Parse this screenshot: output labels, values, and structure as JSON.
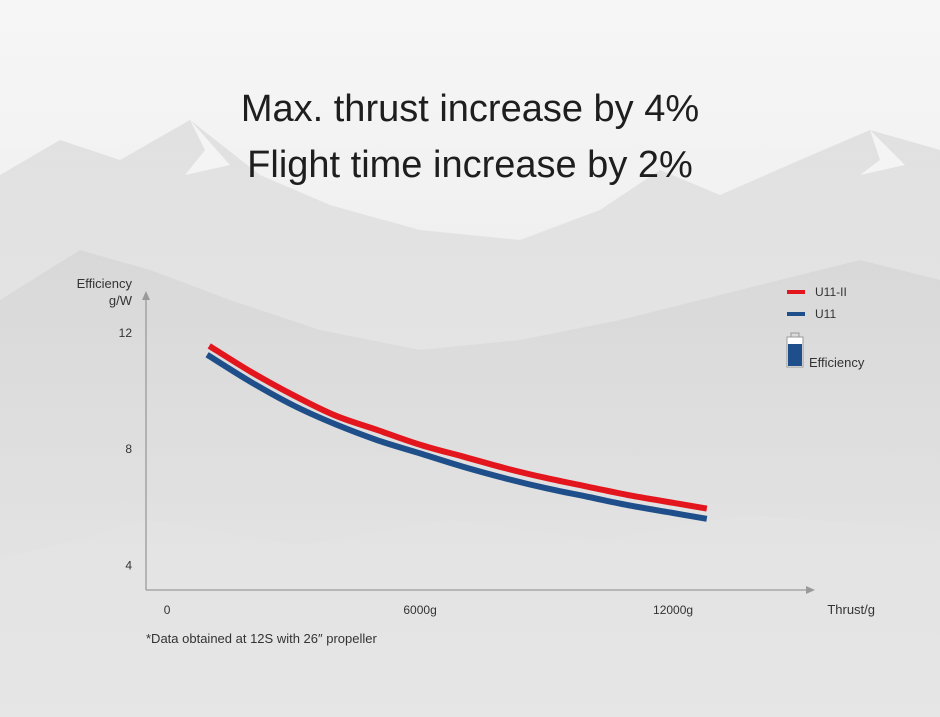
{
  "headline": {
    "line1": "Max. thrust increase by 4%",
    "line2": "Flight time increase by 2%"
  },
  "footnote": "*Data obtained at 12S with 26″ propeller",
  "chart_data": {
    "type": "line",
    "title": "",
    "ylabel_line1": "Efficiency",
    "ylabel_line2": "g/W",
    "xlabel": "Thrust/g",
    "yticks": [
      {
        "value": 4,
        "label": "4"
      },
      {
        "value": 8,
        "label": "8"
      },
      {
        "value": 12,
        "label": "12"
      }
    ],
    "xticks": [
      {
        "value": 0,
        "label": "0"
      },
      {
        "value": 6000,
        "label": "6000g"
      },
      {
        "value": 12000,
        "label": "12000g"
      }
    ],
    "xlim": [
      -500,
      15200
    ],
    "ylim": [
      3.15,
      13.2
    ],
    "legend_placement": "top-right",
    "legend_extra_label": "Efficiency",
    "legend_extra_icon": "battery-icon",
    "grid": false,
    "series": [
      {
        "name": "U11-II",
        "color": "#e3161d",
        "points": [
          [
            1000,
            11.55
          ],
          [
            2000,
            10.65
          ],
          [
            3000,
            9.85
          ],
          [
            4000,
            9.15
          ],
          [
            5000,
            8.65
          ],
          [
            6000,
            8.15
          ],
          [
            7000,
            7.75
          ],
          [
            8000,
            7.35
          ],
          [
            9000,
            7.0
          ],
          [
            10000,
            6.7
          ],
          [
            11000,
            6.4
          ],
          [
            12000,
            6.15
          ],
          [
            12800,
            5.95
          ]
        ]
      },
      {
        "name": "U11",
        "color": "#1f4f8a",
        "points": [
          [
            950,
            11.25
          ],
          [
            2000,
            10.3
          ],
          [
            3000,
            9.5
          ],
          [
            4000,
            8.85
          ],
          [
            5000,
            8.3
          ],
          [
            6000,
            7.85
          ],
          [
            7000,
            7.4
          ],
          [
            8000,
            7.0
          ],
          [
            9000,
            6.65
          ],
          [
            10000,
            6.35
          ],
          [
            11000,
            6.05
          ],
          [
            12000,
            5.8
          ],
          [
            12800,
            5.6
          ]
        ]
      }
    ]
  }
}
